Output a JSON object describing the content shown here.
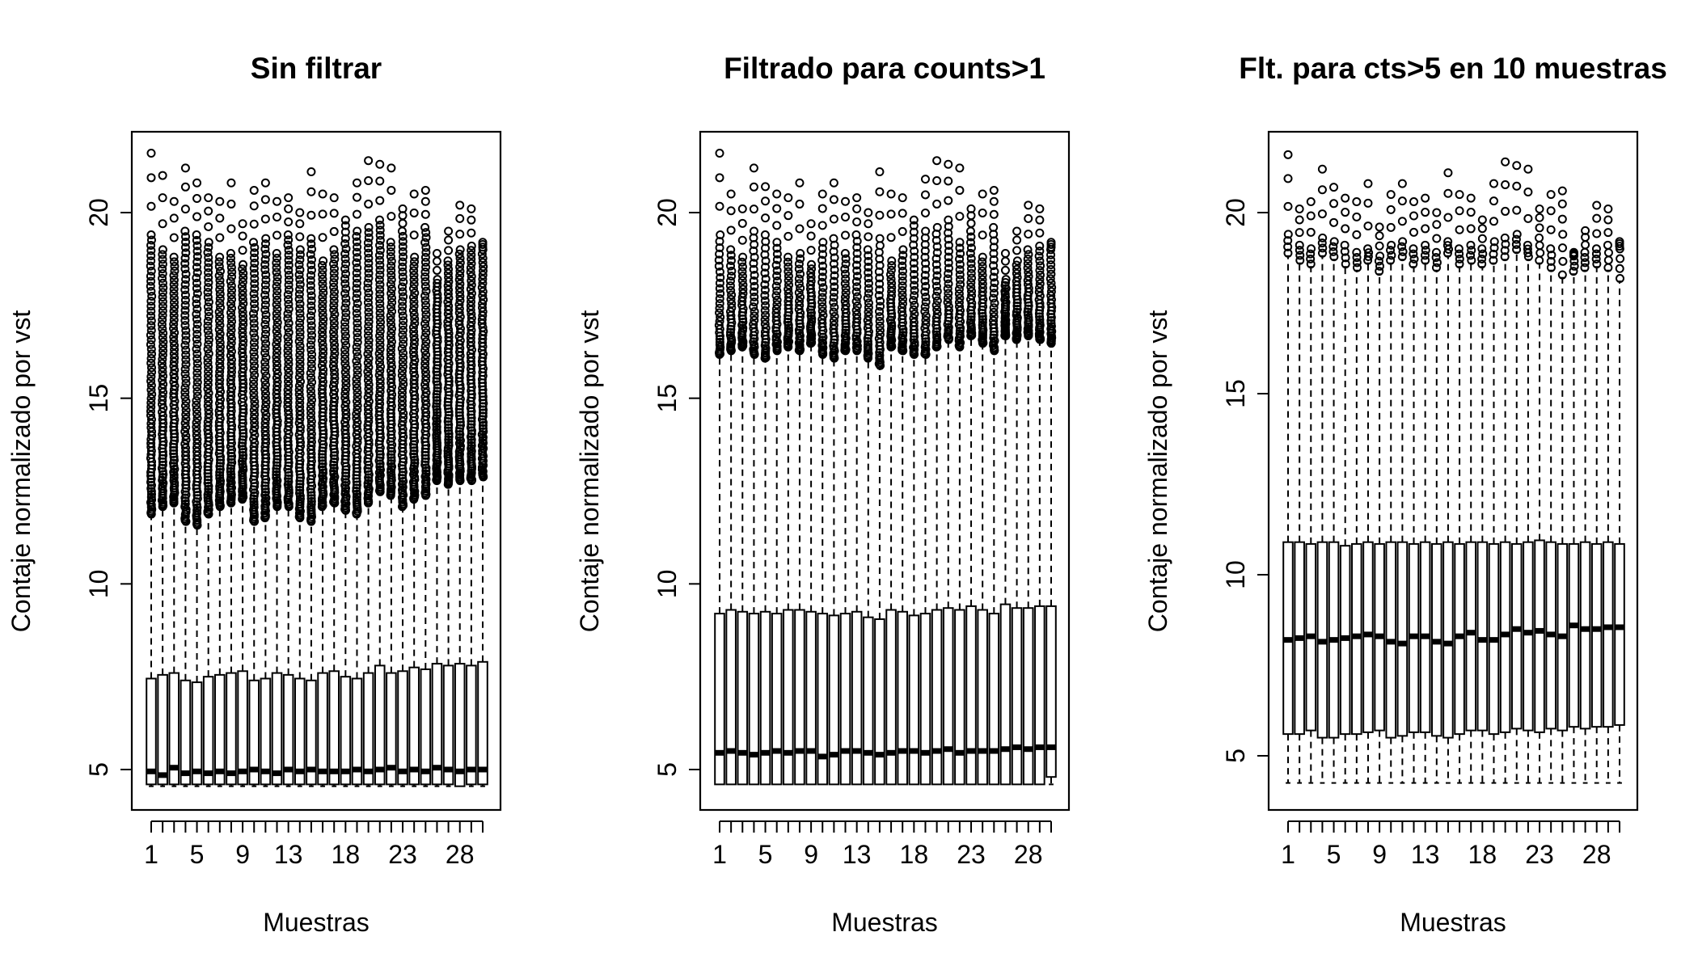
{
  "chart_data": [
    {
      "type": "boxplot",
      "title": "Sin filtrar",
      "xlabel": "Muestras",
      "ylabel": "Contaje normalizado por vst",
      "ylim": [
        4.6,
        22.0
      ],
      "yticks": [
        5,
        10,
        15,
        20
      ],
      "x_tick_labels": [
        "1",
        "5",
        "9",
        "13",
        "18",
        "23",
        "28"
      ],
      "x_tick_samples": [
        1,
        5,
        9,
        13,
        18,
        23,
        28
      ],
      "n_samples": 30,
      "outlier_style": "dense",
      "whisker_low": 4.55,
      "median": [
        4.95,
        4.85,
        5.05,
        4.9,
        4.95,
        4.9,
        4.95,
        4.9,
        4.95,
        5.0,
        4.95,
        4.9,
        5.0,
        4.95,
        5.0,
        4.95,
        4.95,
        4.95,
        5.0,
        4.95,
        5.0,
        5.05,
        4.95,
        5.0,
        4.95,
        5.05,
        5.0,
        4.95,
        5.0,
        5.0
      ],
      "q1": [
        4.6,
        4.6,
        4.6,
        4.6,
        4.6,
        4.6,
        4.6,
        4.6,
        4.6,
        4.6,
        4.6,
        4.6,
        4.6,
        4.6,
        4.6,
        4.6,
        4.6,
        4.6,
        4.6,
        4.6,
        4.6,
        4.6,
        4.6,
        4.6,
        4.6,
        4.6,
        4.6,
        4.55,
        4.6,
        4.6
      ],
      "q3": [
        7.45,
        7.55,
        7.6,
        7.4,
        7.35,
        7.5,
        7.55,
        7.6,
        7.65,
        7.4,
        7.45,
        7.6,
        7.55,
        7.45,
        7.4,
        7.6,
        7.65,
        7.5,
        7.45,
        7.6,
        7.8,
        7.6,
        7.65,
        7.75,
        7.7,
        7.85,
        7.8,
        7.85,
        7.8,
        7.9
      ],
      "whisker_high": [
        11.8,
        12.0,
        12.1,
        11.6,
        11.5,
        11.8,
        12.0,
        12.1,
        12.2,
        11.6,
        11.7,
        12.0,
        12.0,
        11.7,
        11.6,
        12.0,
        12.1,
        11.9,
        11.8,
        12.1,
        12.4,
        12.3,
        12.0,
        12.2,
        12.3,
        12.7,
        12.6,
        12.7,
        12.7,
        12.8
      ],
      "max": [
        21.6,
        21.0,
        20.3,
        21.2,
        20.8,
        20.4,
        20.3,
        20.8,
        19.7,
        20.6,
        20.8,
        20.3,
        20.4,
        20.0,
        21.1,
        20.5,
        20.4,
        19.8,
        20.8,
        21.4,
        21.3,
        21.2,
        20.1,
        20.5,
        20.6,
        18.9,
        19.5,
        20.2,
        20.1,
        19.2
      ],
      "outlier_top": [
        19.4,
        19.0,
        18.8,
        19.5,
        19.4,
        19.2,
        18.8,
        18.9,
        18.6,
        19.2,
        19.3,
        18.9,
        19.4,
        19.0,
        19.3,
        18.7,
        19.0,
        19.3,
        19.5,
        19.6,
        19.8,
        19.2,
        19.5,
        18.8,
        19.6,
        18.2,
        18.7,
        19.0,
        19.1,
        19.0
      ]
    },
    {
      "type": "boxplot",
      "title": "Filtrado para counts>1",
      "xlabel": "Muestras",
      "ylabel": "Contaje normalizado por vst",
      "ylim": [
        4.6,
        22.0
      ],
      "yticks": [
        5,
        10,
        15,
        20
      ],
      "x_tick_labels": [
        "1",
        "5",
        "9",
        "13",
        "18",
        "23",
        "28"
      ],
      "x_tick_samples": [
        1,
        5,
        9,
        13,
        18,
        23,
        28
      ],
      "n_samples": 30,
      "outlier_style": "medium",
      "whisker_low": 4.6,
      "median": [
        5.45,
        5.5,
        5.45,
        5.4,
        5.45,
        5.5,
        5.45,
        5.5,
        5.5,
        5.35,
        5.4,
        5.5,
        5.5,
        5.45,
        5.4,
        5.45,
        5.5,
        5.5,
        5.45,
        5.5,
        5.55,
        5.45,
        5.5,
        5.5,
        5.5,
        5.55,
        5.6,
        5.55,
        5.6,
        5.6
      ],
      "q1": [
        4.6,
        4.6,
        4.6,
        4.6,
        4.6,
        4.6,
        4.6,
        4.6,
        4.6,
        4.6,
        4.6,
        4.6,
        4.6,
        4.6,
        4.6,
        4.6,
        4.6,
        4.6,
        4.6,
        4.6,
        4.6,
        4.6,
        4.6,
        4.6,
        4.6,
        4.6,
        4.6,
        4.6,
        4.6,
        4.8
      ],
      "q3": [
        9.2,
        9.3,
        9.25,
        9.2,
        9.25,
        9.2,
        9.3,
        9.3,
        9.25,
        9.2,
        9.15,
        9.2,
        9.25,
        9.1,
        9.05,
        9.3,
        9.25,
        9.15,
        9.2,
        9.3,
        9.35,
        9.3,
        9.4,
        9.3,
        9.2,
        9.45,
        9.35,
        9.35,
        9.4,
        9.4
      ],
      "whisker_high": [
        16.1,
        16.2,
        16.3,
        16.1,
        16.0,
        16.2,
        16.3,
        16.2,
        16.4,
        16.1,
        16.0,
        16.2,
        16.2,
        16.0,
        15.8,
        16.3,
        16.2,
        16.1,
        16.1,
        16.3,
        16.5,
        16.3,
        16.6,
        16.4,
        16.2,
        16.6,
        16.5,
        16.6,
        16.5,
        16.4
      ],
      "max": [
        21.6,
        20.5,
        20.1,
        21.2,
        20.7,
        20.5,
        20.4,
        20.8,
        19.7,
        20.5,
        20.8,
        20.3,
        20.4,
        20.0,
        21.1,
        20.5,
        20.4,
        19.8,
        20.9,
        21.4,
        21.3,
        21.2,
        20.1,
        20.5,
        20.6,
        18.9,
        19.5,
        20.2,
        20.1,
        19.2
      ],
      "outlier_top": [
        19.4,
        19.0,
        18.8,
        19.5,
        19.4,
        19.2,
        18.8,
        18.9,
        18.6,
        19.2,
        19.3,
        18.9,
        19.4,
        19.0,
        19.3,
        18.7,
        19.0,
        19.3,
        19.5,
        19.6,
        19.8,
        19.2,
        19.5,
        18.8,
        19.6,
        18.2,
        18.7,
        19.0,
        19.1,
        19.0
      ]
    },
    {
      "type": "boxplot",
      "title": "Flt. para cts>5 en 10 muestras",
      "xlabel": "Muestras",
      "ylabel": "Contaje normalizado por vst",
      "ylim": [
        4.0,
        22.0
      ],
      "yticks": [
        5,
        10,
        15,
        20
      ],
      "x_tick_labels": [
        "1",
        "5",
        "9",
        "13",
        "18",
        "23",
        "28"
      ],
      "x_tick_samples": [
        1,
        5,
        9,
        13,
        18,
        23,
        28
      ],
      "n_samples": 30,
      "outlier_style": "sparse",
      "whisker_low": 4.25,
      "median": [
        8.2,
        8.25,
        8.3,
        8.15,
        8.2,
        8.25,
        8.3,
        8.35,
        8.3,
        8.15,
        8.1,
        8.3,
        8.3,
        8.15,
        8.1,
        8.3,
        8.4,
        8.2,
        8.2,
        8.35,
        8.5,
        8.4,
        8.45,
        8.35,
        8.3,
        8.6,
        8.5,
        8.5,
        8.55,
        8.55
      ],
      "q1": [
        5.6,
        5.6,
        5.7,
        5.5,
        5.5,
        5.6,
        5.6,
        5.65,
        5.7,
        5.5,
        5.55,
        5.65,
        5.65,
        5.55,
        5.5,
        5.6,
        5.7,
        5.7,
        5.6,
        5.65,
        5.75,
        5.7,
        5.65,
        5.75,
        5.7,
        5.8,
        5.75,
        5.8,
        5.8,
        5.85
      ],
      "q3": [
        10.9,
        10.9,
        10.85,
        10.9,
        10.9,
        10.8,
        10.85,
        10.9,
        10.85,
        10.9,
        10.9,
        10.85,
        10.9,
        10.85,
        10.9,
        10.85,
        10.9,
        10.9,
        10.85,
        10.9,
        10.85,
        10.9,
        10.95,
        10.9,
        10.85,
        10.85,
        10.9,
        10.85,
        10.9,
        10.85
      ],
      "whisker_high": [
        18.8,
        18.6,
        18.5,
        18.8,
        18.7,
        18.5,
        18.4,
        18.6,
        18.3,
        18.6,
        18.7,
        18.5,
        18.6,
        18.4,
        18.8,
        18.5,
        18.6,
        18.5,
        18.6,
        18.7,
        18.9,
        18.7,
        18.6,
        18.4,
        18.2,
        18.3,
        18.4,
        18.5,
        18.4,
        18.1
      ],
      "max": [
        21.6,
        20.1,
        20.3,
        21.2,
        20.7,
        20.4,
        20.3,
        20.8,
        19.6,
        20.5,
        20.8,
        20.3,
        20.4,
        20.0,
        21.1,
        20.5,
        20.4,
        19.8,
        20.8,
        21.4,
        21.3,
        21.2,
        20.1,
        20.5,
        20.6,
        18.9,
        19.5,
        20.2,
        20.1,
        19.2
      ],
      "outlier_top": [
        19.4,
        19.1,
        19.0,
        19.3,
        19.2,
        19.1,
        18.9,
        19.0,
        18.8,
        19.1,
        19.2,
        19.0,
        19.1,
        18.9,
        19.2,
        19.0,
        19.1,
        19.0,
        19.2,
        19.3,
        19.4,
        19.1,
        19.3,
        19.0,
        19.4,
        18.8,
        18.9,
        19.0,
        19.1,
        19.0
      ]
    }
  ]
}
